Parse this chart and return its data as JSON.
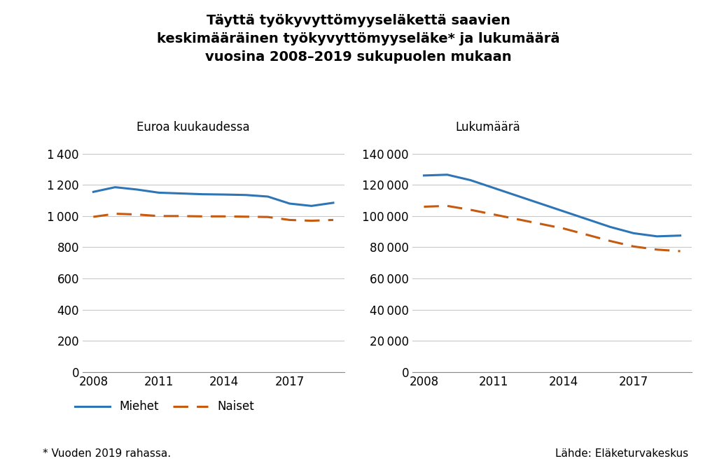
{
  "title": "Täyttä työkyvyttömyyseläkettä saavien\nkeskimääräinen työkyvyttömyyseläke* ja lukumäärä\nvuosina 2008–2019 sukupuolen mukaan",
  "left_subtitle": "Euroa kuukaudessa",
  "right_subtitle": "Lukumäärä",
  "years": [
    2008,
    2009,
    2010,
    2011,
    2012,
    2013,
    2014,
    2015,
    2016,
    2017,
    2018,
    2019
  ],
  "left_miehet": [
    1155,
    1185,
    1170,
    1150,
    1145,
    1140,
    1138,
    1135,
    1125,
    1080,
    1065,
    1085
  ],
  "left_naiset": [
    995,
    1015,
    1010,
    1000,
    1000,
    998,
    998,
    996,
    994,
    975,
    970,
    975
  ],
  "right_miehet": [
    126000,
    126500,
    123000,
    118000,
    113000,
    108000,
    103000,
    98000,
    93000,
    89000,
    87000,
    87500
  ],
  "right_naiset": [
    106000,
    106500,
    104000,
    101000,
    98000,
    95000,
    92000,
    88000,
    84000,
    80500,
    78500,
    77500
  ],
  "miehet_color": "#2E75B6",
  "naiset_color": "#C55A11",
  "left_ylim": [
    0,
    1500
  ],
  "left_yticks": [
    0,
    200,
    400,
    600,
    800,
    1000,
    1200,
    1400
  ],
  "right_ylim": [
    0,
    150000
  ],
  "right_yticks": [
    0,
    20000,
    40000,
    60000,
    80000,
    100000,
    120000,
    140000
  ],
  "footnote": "* Vuoden 2019 rahassa.",
  "source": "Lähde: Eläketurvakeskus",
  "legend_miehet": "Miehet",
  "legend_naiset": "Naiset",
  "background_color": "#FFFFFF",
  "line_width": 2.2,
  "grid_color": "#C8C8C8"
}
